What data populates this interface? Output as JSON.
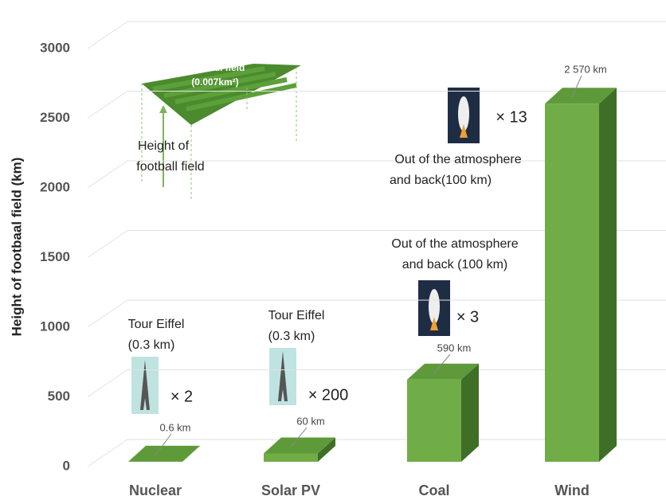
{
  "chart_data": {
    "type": "bar3d",
    "y_label": "Height of footbaal field (km)",
    "categories": [
      "Nuclear",
      "Solar PV",
      "Coal",
      "Wind"
    ],
    "values": [
      0.6,
      60,
      590,
      2570
    ],
    "value_labels": [
      "0.6 km",
      "60 km",
      "590 km",
      "2 570 km"
    ],
    "colors": {
      "front": "#70ad47",
      "top": "#5e9a3a",
      "side": "#3f6f26"
    },
    "ylim": [
      0,
      3000
    ],
    "yticks": [
      0,
      500,
      1000,
      1500,
      2000,
      2500,
      3000
    ],
    "grid": true,
    "annotations": [
      "Football field",
      "(0.007km²)",
      "Height of",
      "football field",
      "Tour Eiffel",
      "(0.3 km)",
      "× 2",
      "Tour Eiffel",
      "(0.3 km)",
      "× 200",
      "Out of the atmosphere",
      "and back (100 km)",
      "× 3",
      "Out of the atmosphere",
      "and back(100 km)",
      "× 13"
    ]
  }
}
